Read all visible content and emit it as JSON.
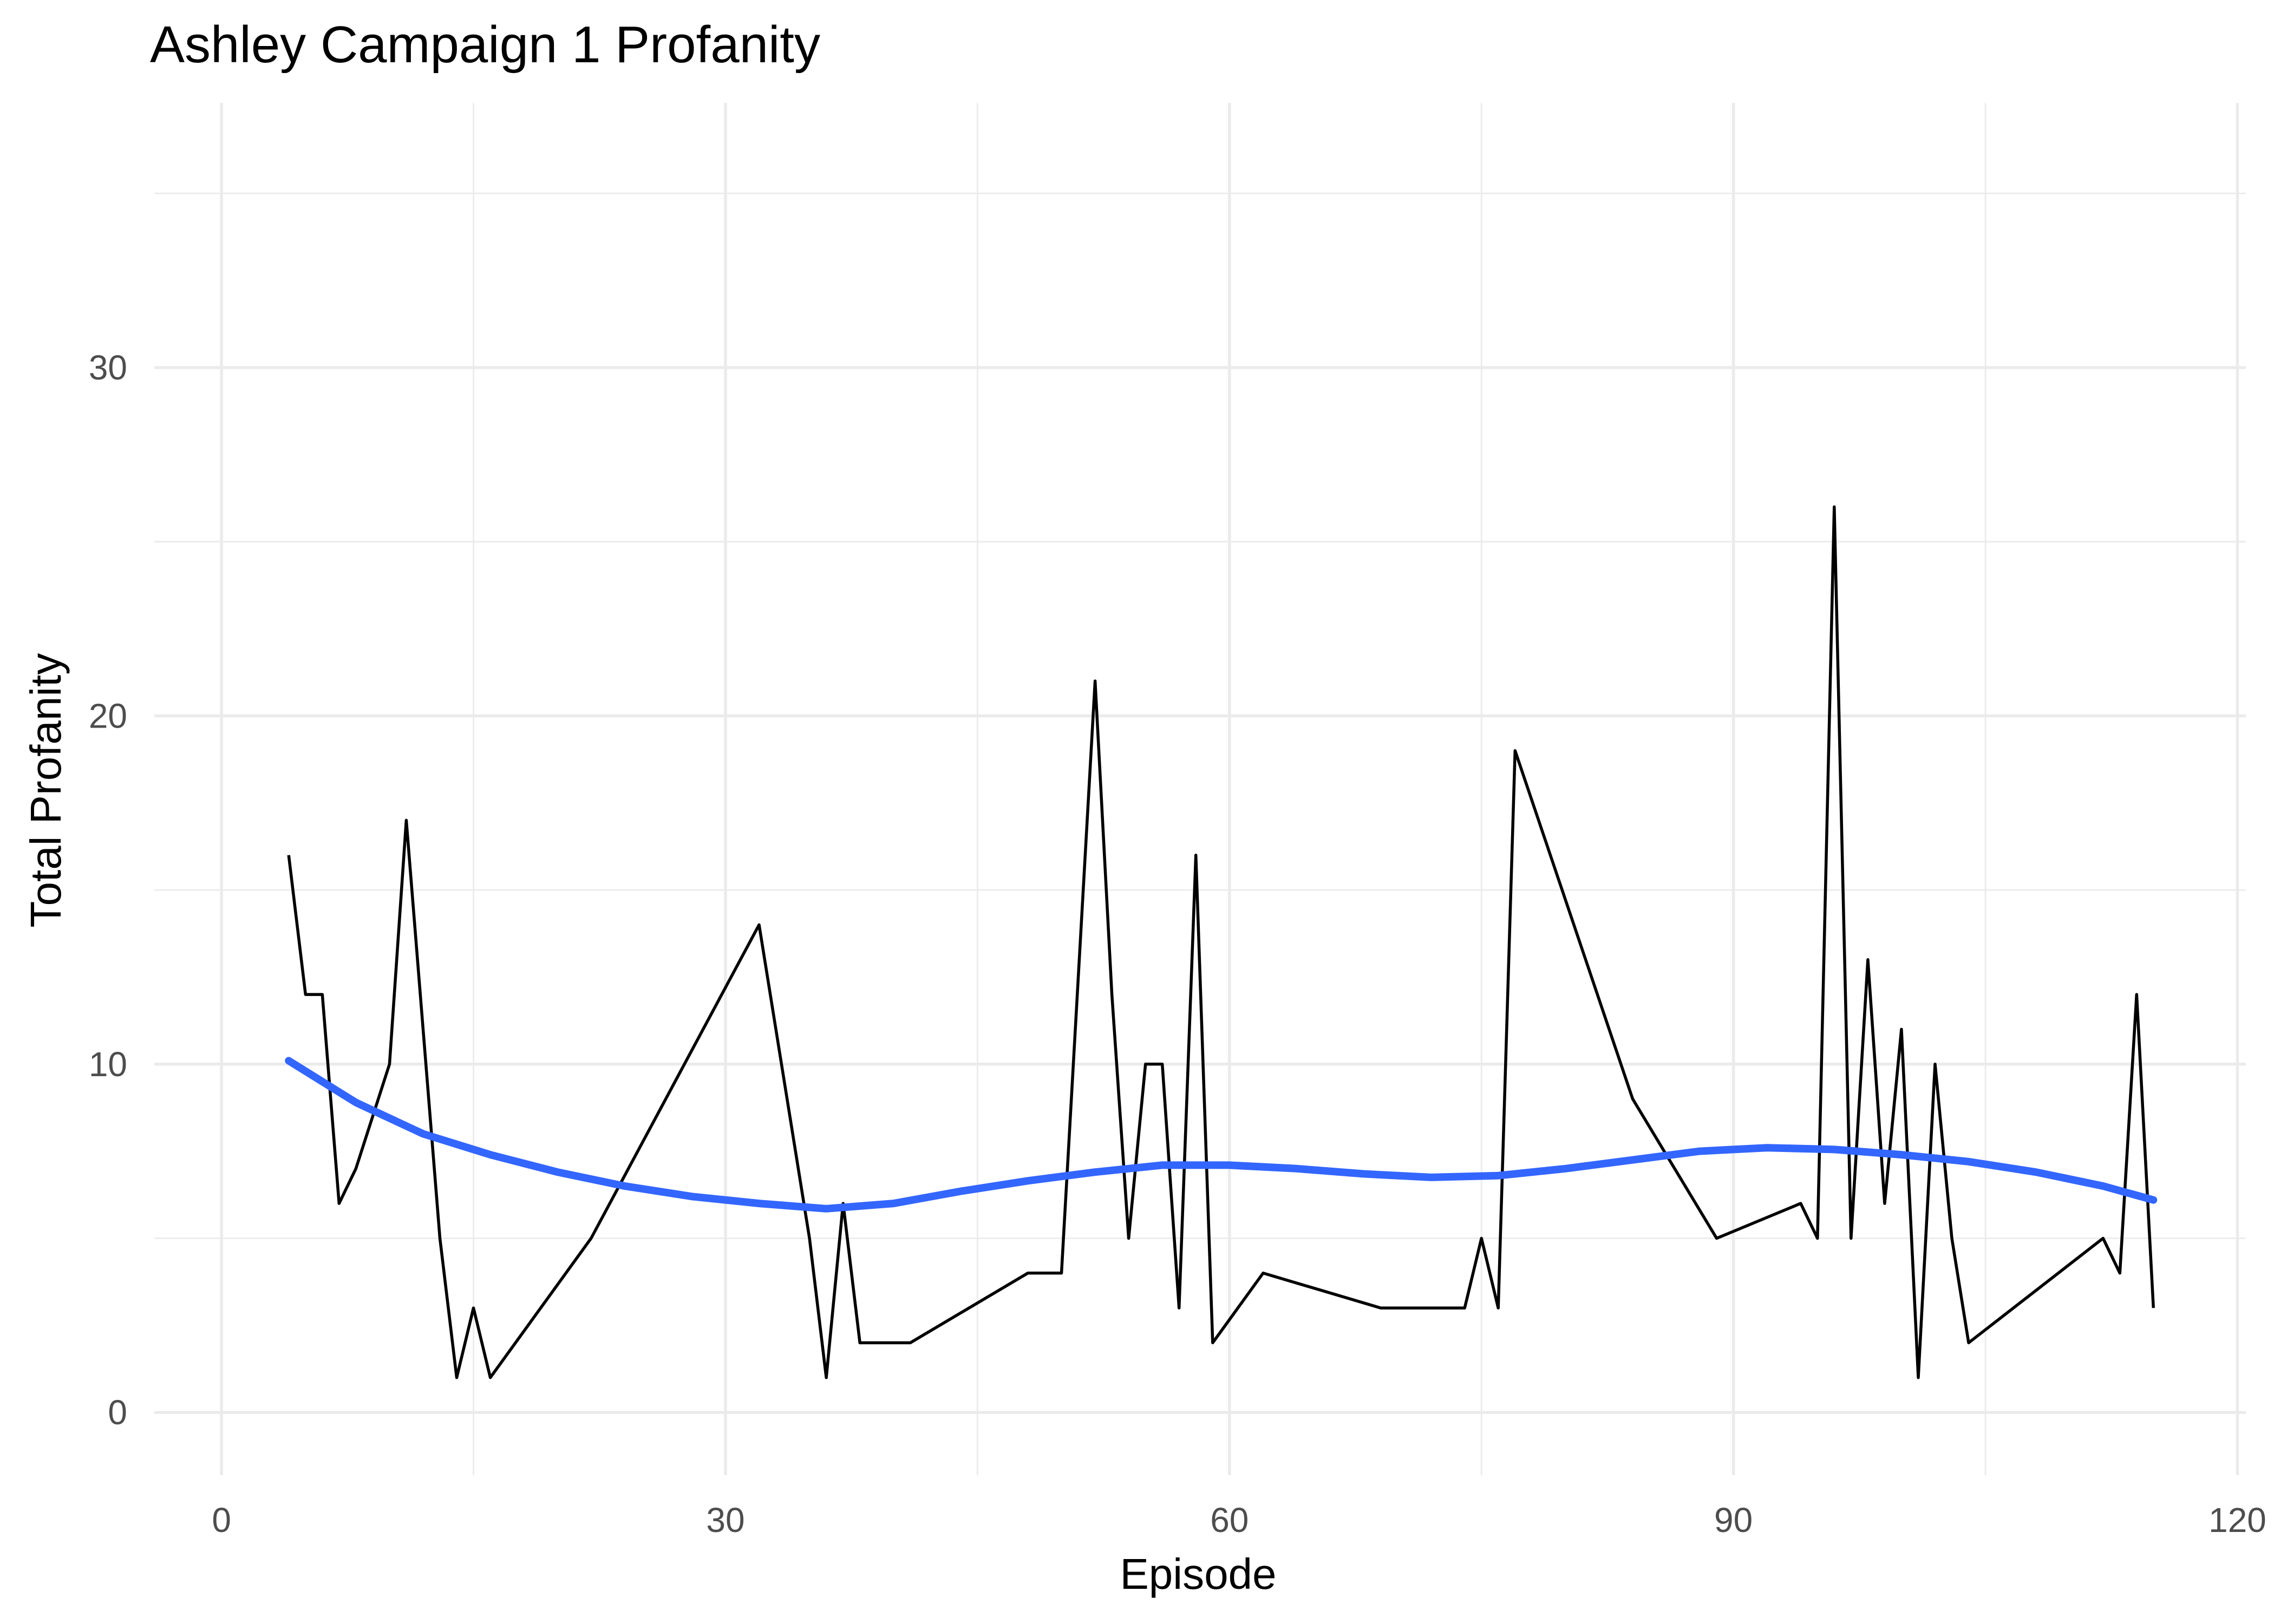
{
  "chart_data": {
    "type": "line",
    "title": "Ashley Campaign 1 Profanity",
    "xlabel": "Episode",
    "ylabel": "Total Profanity",
    "xlim": [
      -4,
      120.5
    ],
    "ylim": [
      -1.8,
      37.6
    ],
    "x_ticks": [
      0,
      30,
      60,
      90,
      120
    ],
    "x_tick_labels": [
      "0",
      "30",
      "60",
      "90",
      "120"
    ],
    "x_minor_ticks": [
      15,
      45,
      75,
      105
    ],
    "y_ticks": [
      0,
      10,
      20,
      30
    ],
    "y_tick_labels": [
      "0",
      "10",
      "20",
      "30"
    ],
    "y_minor_ticks": [
      5,
      15,
      25,
      35
    ],
    "grid": true,
    "legend": "none",
    "series": [
      {
        "x": [
          4,
          5,
          6,
          7,
          8,
          10,
          11,
          13,
          14,
          15,
          16,
          22,
          32,
          35,
          36,
          37,
          38,
          41,
          48,
          50,
          52,
          53,
          54,
          55,
          56,
          57,
          58,
          59,
          62,
          69,
          74,
          75,
          76,
          77,
          84,
          89,
          94,
          95,
          96,
          97,
          98,
          99,
          100,
          101,
          102,
          103,
          104,
          112,
          113,
          114,
          115
        ],
        "y": [
          16,
          12,
          12,
          6,
          7,
          10,
          17,
          5,
          1,
          3,
          1,
          5,
          14,
          5,
          1,
          6,
          2,
          2,
          4,
          4,
          21,
          12,
          5,
          10,
          10,
          3,
          16,
          2,
          4,
          3,
          3,
          5,
          3,
          19,
          9,
          5,
          6,
          5,
          26,
          5,
          13,
          6,
          11,
          1,
          10,
          5,
          2,
          5,
          4,
          12,
          3
        ],
        "color": "#000000"
      },
      {
        "x": [
          4,
          8,
          12,
          16,
          20,
          24,
          28,
          32,
          36,
          40,
          44,
          48,
          52,
          56,
          60,
          64,
          68,
          72,
          76,
          80,
          84,
          88,
          92,
          96,
          100,
          104,
          108,
          112,
          115
        ],
        "y": [
          10.1,
          8.9,
          8.0,
          7.4,
          6.9,
          6.5,
          6.2,
          6.0,
          5.85,
          6.0,
          6.35,
          6.65,
          6.9,
          7.1,
          7.1,
          7.0,
          6.85,
          6.75,
          6.8,
          7.0,
          7.25,
          7.5,
          7.6,
          7.55,
          7.4,
          7.2,
          6.9,
          6.5,
          6.1
        ],
        "color": "#3366ff"
      }
    ]
  }
}
